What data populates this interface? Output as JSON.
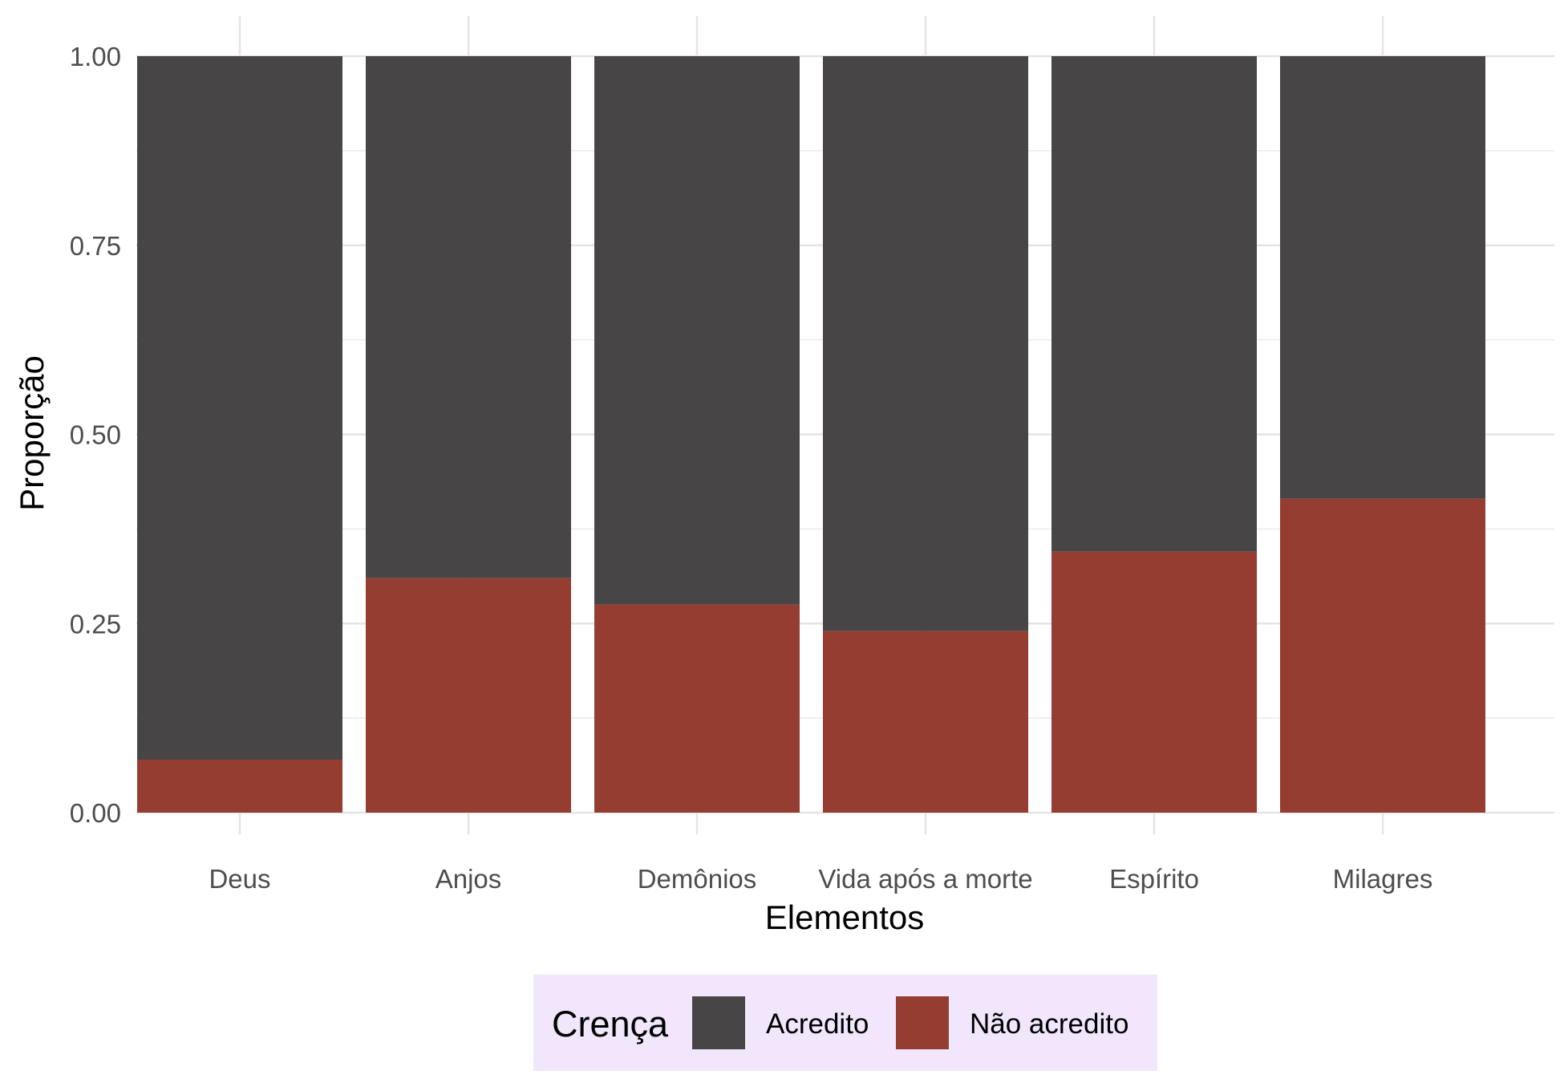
{
  "chart_data": {
    "type": "bar",
    "stacked": true,
    "position": "fill",
    "title": "",
    "xlabel": "Elementos",
    "ylabel": "Proporção",
    "categories": [
      "Deus",
      "Anjos",
      "Demônios",
      "Vida após a morte",
      "Espírito",
      "Milagres"
    ],
    "series": [
      {
        "name": "Não acredito",
        "color": "#943D30",
        "values": [
          0.07,
          0.31,
          0.275,
          0.24,
          0.345,
          0.415
        ]
      },
      {
        "name": "Acredito",
        "color": "#484546",
        "values": [
          0.93,
          0.69,
          0.725,
          0.76,
          0.655,
          0.585
        ]
      }
    ],
    "ylim": [
      0,
      1
    ],
    "yticks": [
      "0.00",
      "0.25",
      "0.50",
      "0.75",
      "1.00"
    ],
    "grid": true,
    "legend": {
      "title": "Crença",
      "position": "bottom",
      "background": "#F1E6FB",
      "items": [
        {
          "label": "Acredito",
          "color": "#484546"
        },
        {
          "label": "Não acredito",
          "color": "#943D30"
        }
      ]
    }
  }
}
